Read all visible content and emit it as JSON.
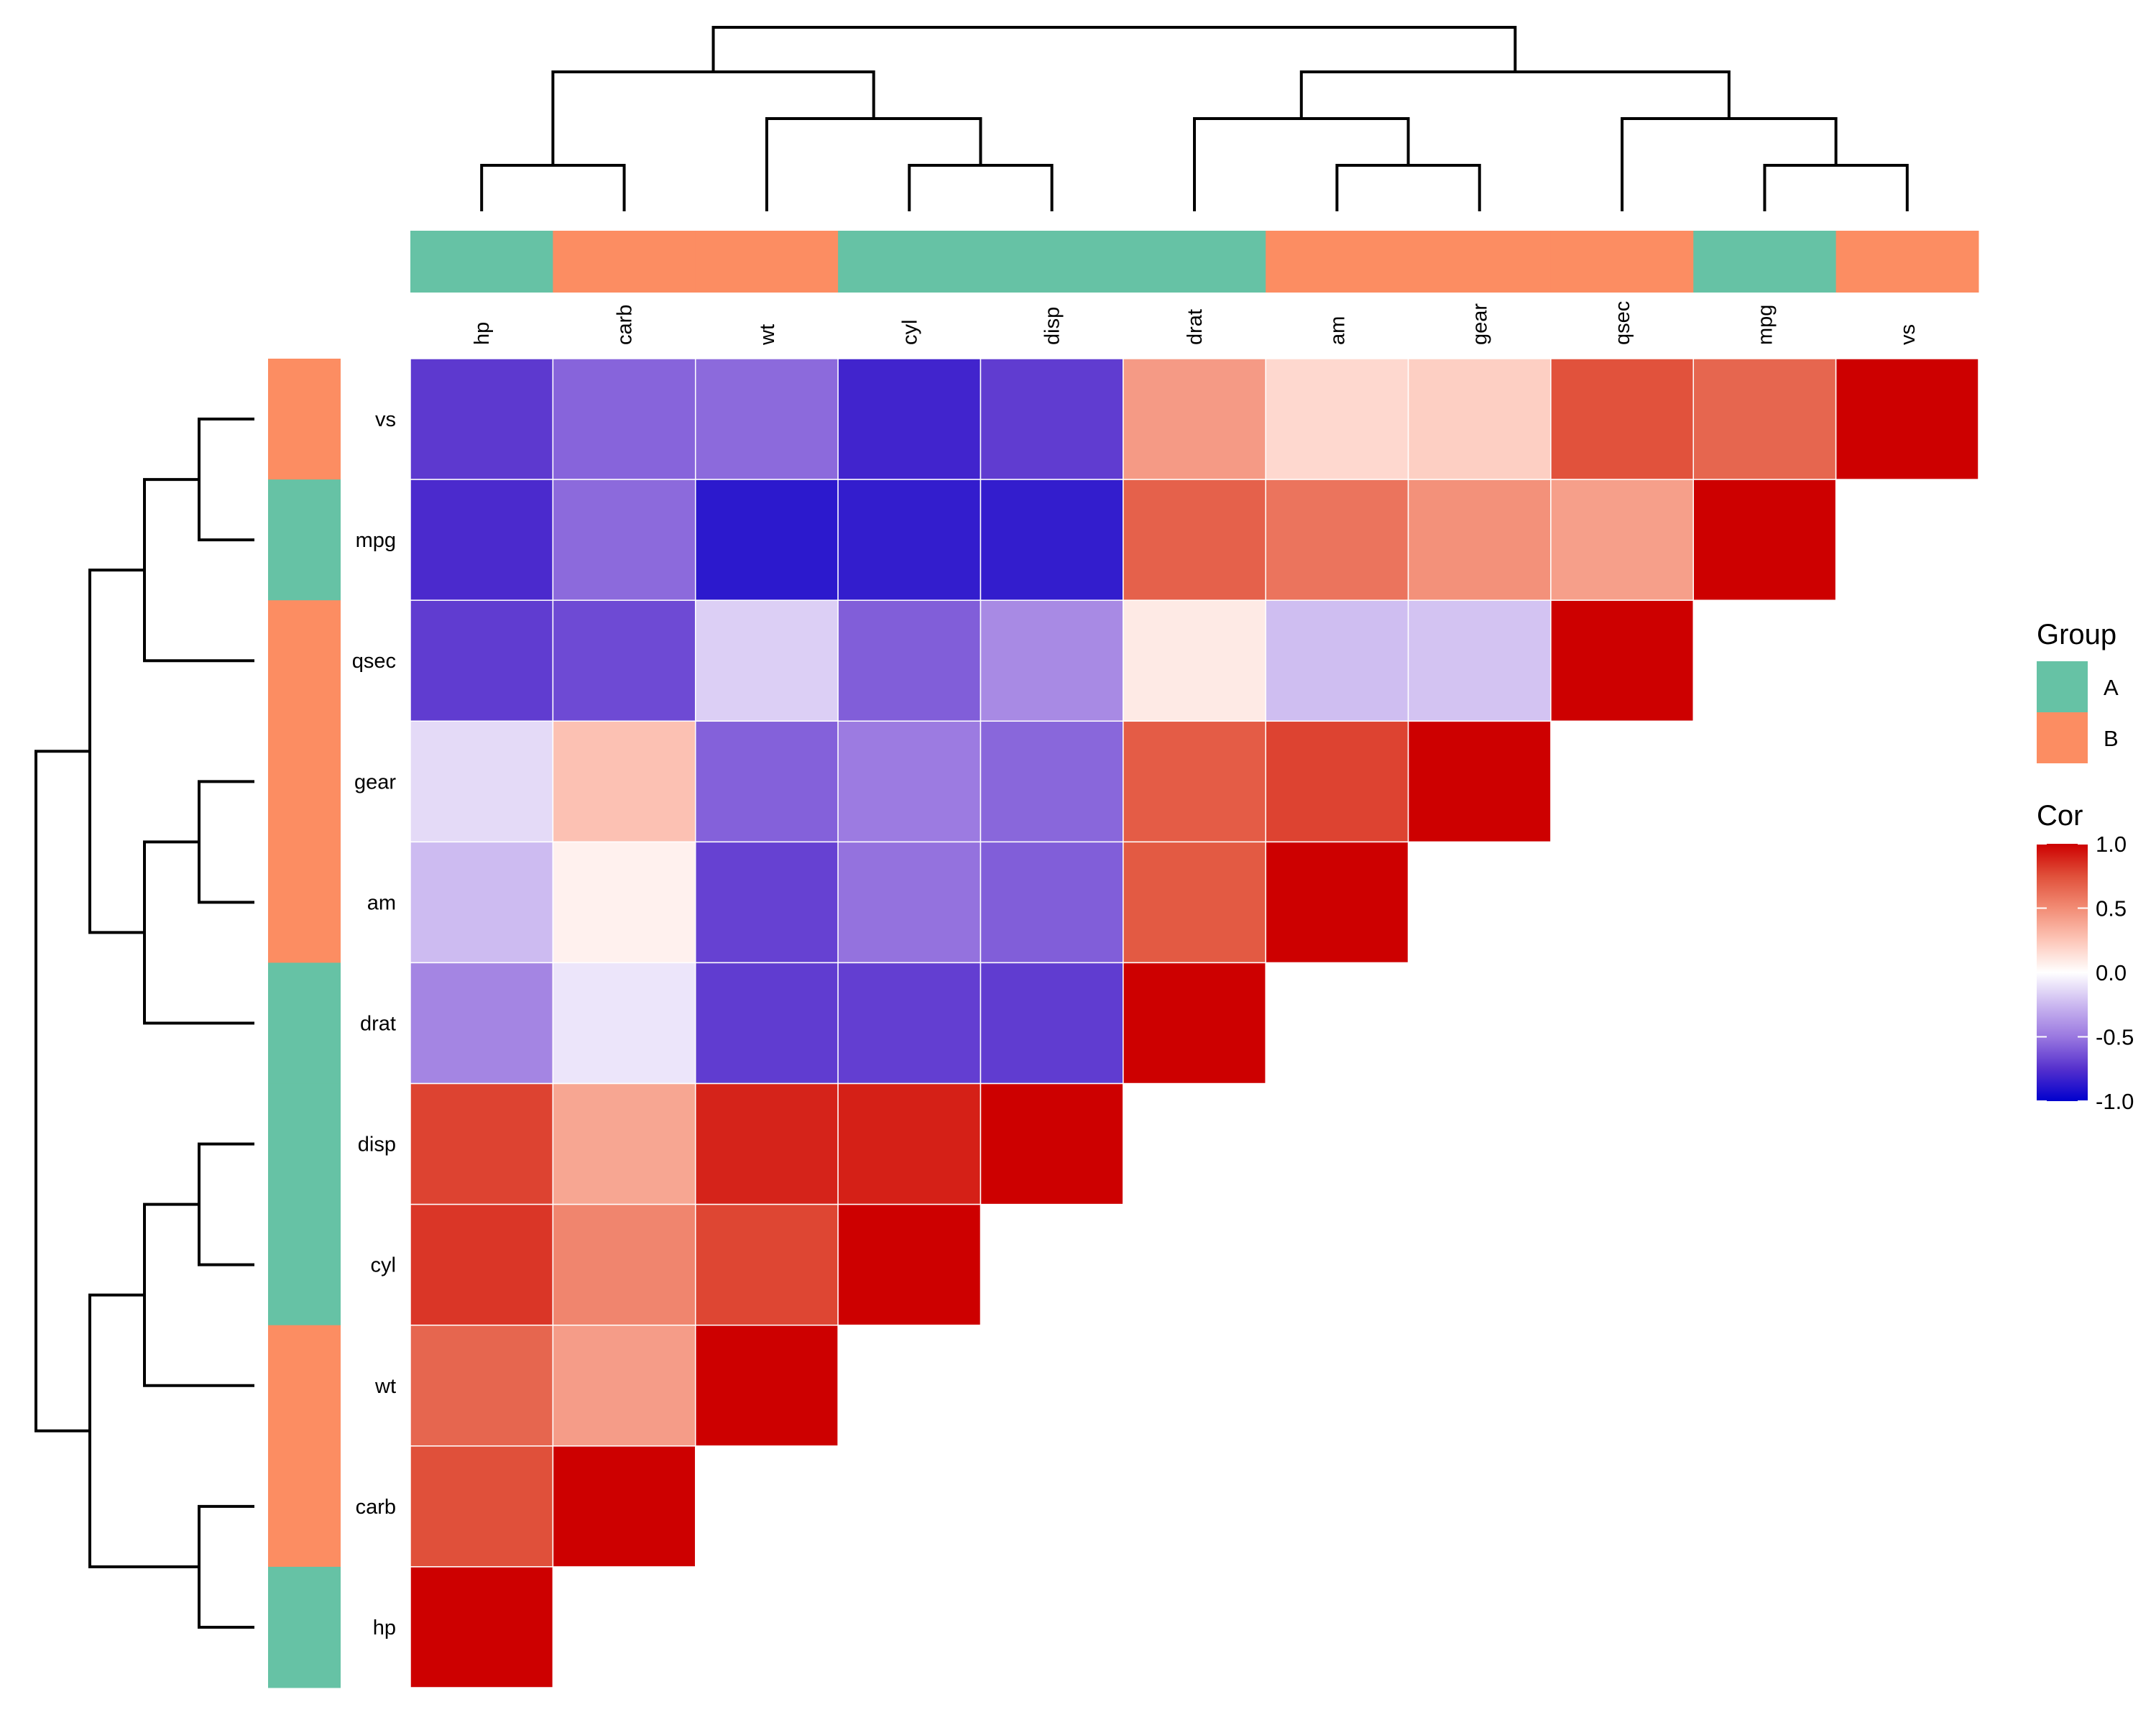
{
  "chart_data": {
    "type": "heatmap",
    "title": "",
    "variables_columns": [
      "hp",
      "carb",
      "wt",
      "cyl",
      "disp",
      "drat",
      "am",
      "gear",
      "qsec",
      "mpg",
      "vs"
    ],
    "variables_rows": [
      "vs",
      "mpg",
      "qsec",
      "gear",
      "am",
      "drat",
      "disp",
      "cyl",
      "wt",
      "carb",
      "hp"
    ],
    "triangle": "upper-left (cells shown only where column index + row index < 11, diagonal included)",
    "correlations": {
      "mpg": {
        "mpg": 1.0,
        "cyl": -0.85,
        "disp": -0.85,
        "hp": -0.78,
        "drat": 0.68,
        "wt": -0.87,
        "qsec": 0.42,
        "vs": 0.66,
        "am": 0.6,
        "gear": 0.48,
        "carb": -0.55
      },
      "cyl": {
        "cyl": 1.0,
        "disp": 0.9,
        "hp": 0.83,
        "drat": -0.7,
        "wt": 0.78,
        "qsec": -0.59,
        "vs": -0.81,
        "am": -0.52,
        "gear": -0.49,
        "carb": 0.53
      },
      "disp": {
        "disp": 1.0,
        "hp": 0.79,
        "drat": -0.71,
        "wt": 0.89,
        "qsec": -0.43,
        "vs": -0.71,
        "am": -0.59,
        "gear": -0.56,
        "carb": 0.39
      },
      "hp": {
        "hp": 1.0,
        "drat": -0.45,
        "wt": 0.66,
        "qsec": -0.71,
        "vs": -0.72,
        "am": -0.24,
        "gear": -0.13,
        "carb": 0.75
      },
      "drat": {
        "drat": 1.0,
        "wt": -0.71,
        "qsec": 0.09,
        "vs": 0.44,
        "am": 0.71,
        "gear": 0.7,
        "carb": -0.09
      },
      "wt": {
        "wt": 1.0,
        "qsec": -0.17,
        "vs": -0.55,
        "am": -0.69,
        "gear": -0.58,
        "carb": 0.43
      },
      "qsec": {
        "qsec": 1.0,
        "vs": 0.74,
        "am": -0.23,
        "gear": -0.21,
        "carb": -0.66
      },
      "vs": {
        "vs": 1.0,
        "am": 0.17,
        "gear": 0.21,
        "carb": -0.57
      },
      "am": {
        "am": 1.0,
        "gear": 0.79,
        "carb": 0.06
      },
      "gear": {
        "gear": 1.0,
        "carb": 0.27
      },
      "carb": {
        "carb": 1.0
      }
    },
    "groups": {
      "hp": "A",
      "carb": "B",
      "wt": "B",
      "cyl": "A",
      "disp": "A",
      "drat": "A",
      "am": "B",
      "gear": "B",
      "qsec": "B",
      "mpg": "A",
      "vs": "B"
    },
    "column_dendrogram": [
      "((hp, carb), (wt, (cyl, disp)))",
      "((drat, (am, gear)), (qsec, (mpg, vs)))"
    ],
    "row_dendrogram": [
      "(((vs, mpg), qsec), ((gear, am), drat))",
      "(((disp, cyl), wt), (carb, hp))"
    ],
    "color_scale": {
      "min": -1.0,
      "mid": 0.0,
      "max": 1.0,
      "low_color": "#0000CD",
      "mid_color": "#FFFFFF",
      "high_color": "#CD0000",
      "stops": [
        {
          "v": -1.0,
          "c": "#0000CD"
        },
        {
          "v": -0.75,
          "c": "#5530CD"
        },
        {
          "v": -0.5,
          "c": "#9A78E0"
        },
        {
          "v": -0.25,
          "c": "#CBB8F0"
        },
        {
          "v": 0.0,
          "c": "#FFFFFF"
        },
        {
          "v": 0.25,
          "c": "#FDC6B8"
        },
        {
          "v": 0.5,
          "c": "#F28C75"
        },
        {
          "v": 0.75,
          "c": "#E0503A"
        },
        {
          "v": 1.0,
          "c": "#CD0000"
        }
      ]
    },
    "legends": {
      "group": {
        "title": "Group",
        "entries": [
          {
            "label": "A",
            "color": "#66C2A5"
          },
          {
            "label": "B",
            "color": "#FC8D62"
          }
        ]
      },
      "cor": {
        "title": "Cor",
        "ticks": [
          "1.0",
          "0.5",
          "0.0",
          "-0.5",
          "-1.0"
        ],
        "tick_values": [
          1.0,
          0.5,
          0.0,
          -0.5,
          -1.0
        ]
      },
      "placement": "right"
    }
  }
}
